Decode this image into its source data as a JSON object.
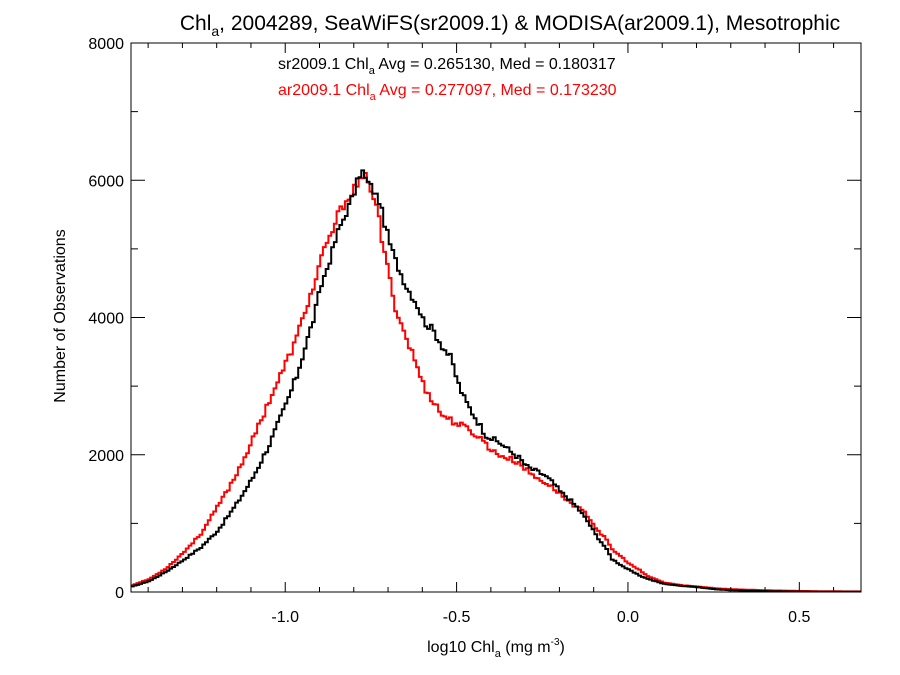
{
  "colors": {
    "sr": "#000000",
    "ar": "#ff0000",
    "axes": "#000000",
    "background": "#ffffff"
  },
  "chart_data": {
    "type": "line",
    "title": {
      "prefix": "Chl",
      "subscript": "a",
      "suffix": ", 2004289, SeaWiFS(sr2009.1) & MODISA(ar2009.1), Mesotrophic"
    },
    "xlabel": {
      "prefix": "log10 Chl",
      "subscript": "a",
      "middle": " (mg m",
      "superscript": "-3",
      "suffix": ")"
    },
    "ylabel": "Number of Observations",
    "xlim": [
      -1.45,
      0.68
    ],
    "ylim": [
      0,
      8000
    ],
    "x_ticks": [
      -1.0,
      -0.5,
      0.0,
      0.5
    ],
    "x_tick_labels": [
      "-1.0",
      "-0.5",
      "0.0",
      "0.5"
    ],
    "y_ticks": [
      0,
      2000,
      4000,
      6000,
      8000
    ],
    "y_tick_labels": [
      "0",
      "2000",
      "4000",
      "6000",
      "8000"
    ],
    "grid": false,
    "annotations": [
      {
        "prefix": "sr2009.1 Chl",
        "subscript": "a",
        "suffix": " Avg = 0.265130, Med = 0.180317",
        "color": "#000000"
      },
      {
        "prefix": "ar2009.1 Chl",
        "subscript": "a",
        "suffix": " Avg = 0.277097, Med = 0.173230",
        "color": "#ff0000"
      }
    ],
    "series": [
      {
        "color": "#000000",
        "style": "steps",
        "points": [
          [
            -1.45,
            80
          ],
          [
            -1.4,
            160
          ],
          [
            -1.35,
            300
          ],
          [
            -1.3,
            470
          ],
          [
            -1.25,
            650
          ],
          [
            -1.2,
            900
          ],
          [
            -1.15,
            1250
          ],
          [
            -1.1,
            1650
          ],
          [
            -1.05,
            2150
          ],
          [
            -1.0,
            2750
          ],
          [
            -0.97,
            3150
          ],
          [
            -0.95,
            3500
          ],
          [
            -0.92,
            4000
          ],
          [
            -0.9,
            4450
          ],
          [
            -0.87,
            4900
          ],
          [
            -0.85,
            5250
          ],
          [
            -0.82,
            5600
          ],
          [
            -0.8,
            5850
          ],
          [
            -0.79,
            6050
          ],
          [
            -0.78,
            6150
          ],
          [
            -0.77,
            6020
          ],
          [
            -0.75,
            5880
          ],
          [
            -0.73,
            5700
          ],
          [
            -0.72,
            5500
          ],
          [
            -0.7,
            5100
          ],
          [
            -0.68,
            4800
          ],
          [
            -0.65,
            4450
          ],
          [
            -0.62,
            4200
          ],
          [
            -0.6,
            3950
          ],
          [
            -0.57,
            3800
          ],
          [
            -0.55,
            3620
          ],
          [
            -0.52,
            3400
          ],
          [
            -0.5,
            3050
          ],
          [
            -0.48,
            2800
          ],
          [
            -0.45,
            2550
          ],
          [
            -0.42,
            2300
          ],
          [
            -0.4,
            2230
          ],
          [
            -0.37,
            2150
          ],
          [
            -0.35,
            2060
          ],
          [
            -0.32,
            1950
          ],
          [
            -0.3,
            1830
          ],
          [
            -0.28,
            1780
          ],
          [
            -0.25,
            1710
          ],
          [
            -0.22,
            1580
          ],
          [
            -0.2,
            1450
          ],
          [
            -0.18,
            1380
          ],
          [
            -0.15,
            1220
          ],
          [
            -0.12,
            1020
          ],
          [
            -0.1,
            850
          ],
          [
            -0.07,
            650
          ],
          [
            -0.05,
            480
          ],
          [
            -0.02,
            380
          ],
          [
            0.0,
            320
          ],
          [
            0.03,
            240
          ],
          [
            0.05,
            200
          ],
          [
            0.08,
            150
          ],
          [
            0.1,
            120
          ],
          [
            0.15,
            90
          ],
          [
            0.2,
            70
          ],
          [
            0.25,
            40
          ],
          [
            0.3,
            25
          ],
          [
            0.4,
            12
          ],
          [
            0.5,
            6
          ],
          [
            0.6,
            3
          ],
          [
            0.68,
            2
          ]
        ]
      },
      {
        "color": "#ff0000",
        "style": "steps",
        "points": [
          [
            -1.45,
            100
          ],
          [
            -1.4,
            190
          ],
          [
            -1.35,
            350
          ],
          [
            -1.3,
            580
          ],
          [
            -1.25,
            850
          ],
          [
            -1.2,
            1250
          ],
          [
            -1.15,
            1680
          ],
          [
            -1.1,
            2200
          ],
          [
            -1.05,
            2800
          ],
          [
            -1.0,
            3350
          ],
          [
            -0.97,
            3700
          ],
          [
            -0.95,
            4050
          ],
          [
            -0.92,
            4450
          ],
          [
            -0.9,
            4850
          ],
          [
            -0.87,
            5200
          ],
          [
            -0.85,
            5500
          ],
          [
            -0.82,
            5750
          ],
          [
            -0.8,
            5900
          ],
          [
            -0.78,
            6000
          ],
          [
            -0.77,
            6050
          ],
          [
            -0.76,
            6000
          ],
          [
            -0.75,
            5800
          ],
          [
            -0.73,
            5450
          ],
          [
            -0.72,
            5050
          ],
          [
            -0.7,
            4600
          ],
          [
            -0.68,
            4100
          ],
          [
            -0.65,
            3700
          ],
          [
            -0.62,
            3300
          ],
          [
            -0.6,
            3000
          ],
          [
            -0.57,
            2770
          ],
          [
            -0.55,
            2600
          ],
          [
            -0.52,
            2500
          ],
          [
            -0.5,
            2450
          ],
          [
            -0.48,
            2400
          ],
          [
            -0.45,
            2300
          ],
          [
            -0.42,
            2180
          ],
          [
            -0.4,
            2050
          ],
          [
            -0.37,
            1980
          ],
          [
            -0.35,
            1940
          ],
          [
            -0.32,
            1880
          ],
          [
            -0.3,
            1780
          ],
          [
            -0.28,
            1690
          ],
          [
            -0.25,
            1610
          ],
          [
            -0.22,
            1510
          ],
          [
            -0.2,
            1420
          ],
          [
            -0.18,
            1330
          ],
          [
            -0.15,
            1230
          ],
          [
            -0.12,
            1110
          ],
          [
            -0.1,
            950
          ],
          [
            -0.07,
            780
          ],
          [
            -0.05,
            620
          ],
          [
            -0.02,
            500
          ],
          [
            0.0,
            410
          ],
          [
            0.03,
            320
          ],
          [
            0.05,
            240
          ],
          [
            0.08,
            180
          ],
          [
            0.1,
            140
          ],
          [
            0.15,
            100
          ],
          [
            0.2,
            80
          ],
          [
            0.25,
            55
          ],
          [
            0.3,
            40
          ],
          [
            0.4,
            25
          ],
          [
            0.5,
            15
          ],
          [
            0.6,
            10
          ],
          [
            0.68,
            8
          ]
        ]
      }
    ]
  }
}
